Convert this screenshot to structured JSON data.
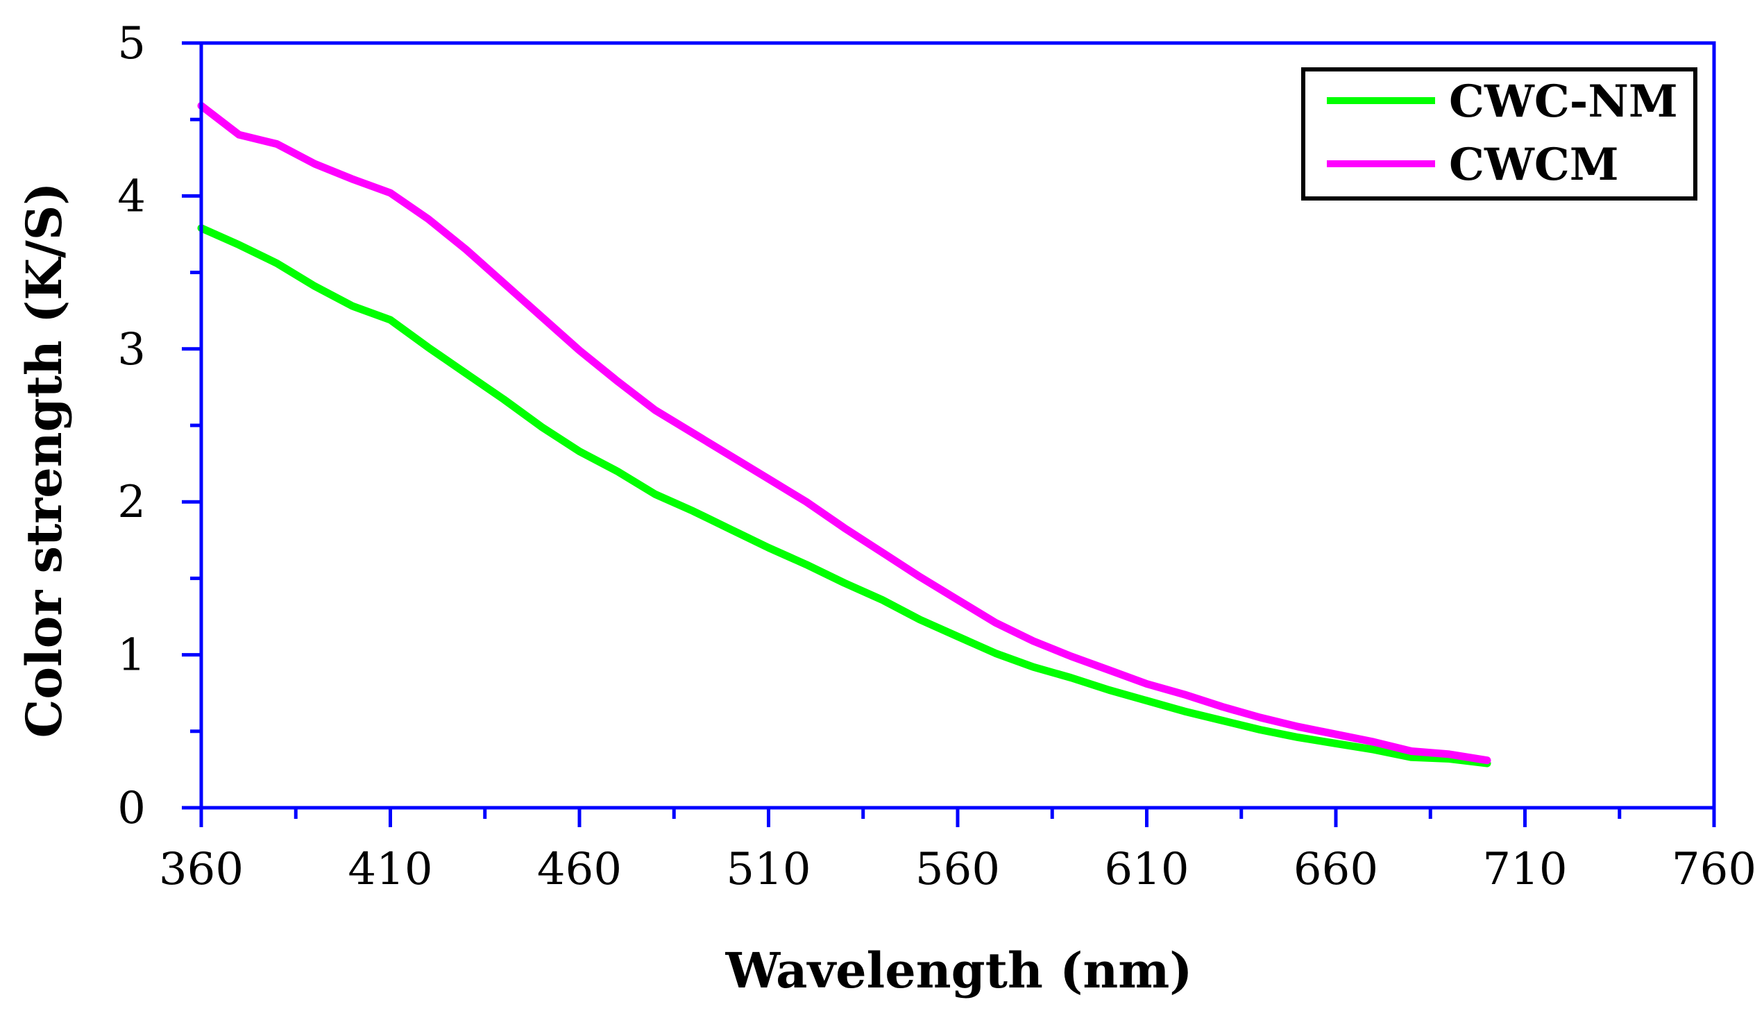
{
  "chart_data": {
    "type": "line",
    "title": "",
    "xlabel": "Wavelength (nm)",
    "ylabel": "Color strength (K/S)",
    "xlim": [
      360,
      760
    ],
    "ylim": [
      0,
      5
    ],
    "x_ticks": [
      360,
      410,
      460,
      510,
      560,
      610,
      660,
      710,
      760
    ],
    "x_tick_labels": [
      "360",
      "410",
      "460",
      "510",
      "560",
      "610",
      "660",
      "710",
      "760"
    ],
    "x_minor_step": 25,
    "y_ticks": [
      0,
      1,
      2,
      3,
      4,
      5
    ],
    "y_tick_labels": [
      "0",
      "1",
      "2",
      "3",
      "4",
      "5"
    ],
    "y_minor_step": 0.5,
    "grid": false,
    "legend_position": "top-right",
    "axis_color": "#0000FF",
    "x": [
      360,
      370,
      380,
      390,
      400,
      410,
      420,
      430,
      440,
      450,
      460,
      470,
      480,
      490,
      500,
      510,
      520,
      530,
      540,
      550,
      560,
      570,
      580,
      590,
      600,
      610,
      620,
      630,
      640,
      650,
      660,
      670,
      680,
      690,
      700
    ],
    "series": [
      {
        "name": "CWC-NM",
        "color": "#00FF00",
        "values": [
          3.79,
          3.68,
          3.56,
          3.41,
          3.28,
          3.19,
          3.01,
          2.84,
          2.67,
          2.49,
          2.33,
          2.2,
          2.05,
          1.94,
          1.82,
          1.7,
          1.59,
          1.47,
          1.36,
          1.23,
          1.12,
          1.01,
          0.92,
          0.85,
          0.77,
          0.7,
          0.63,
          0.57,
          0.51,
          0.46,
          0.42,
          0.38,
          0.33,
          0.32,
          0.29
        ]
      },
      {
        "name": "CWCM",
        "color": "#FF00FF",
        "values": [
          4.59,
          4.4,
          4.34,
          4.21,
          4.11,
          4.02,
          3.85,
          3.65,
          3.43,
          3.21,
          2.99,
          2.79,
          2.6,
          2.45,
          2.3,
          2.15,
          2.0,
          1.83,
          1.67,
          1.51,
          1.36,
          1.21,
          1.09,
          0.99,
          0.9,
          0.81,
          0.74,
          0.66,
          0.59,
          0.53,
          0.48,
          0.43,
          0.37,
          0.35,
          0.31
        ]
      }
    ]
  }
}
